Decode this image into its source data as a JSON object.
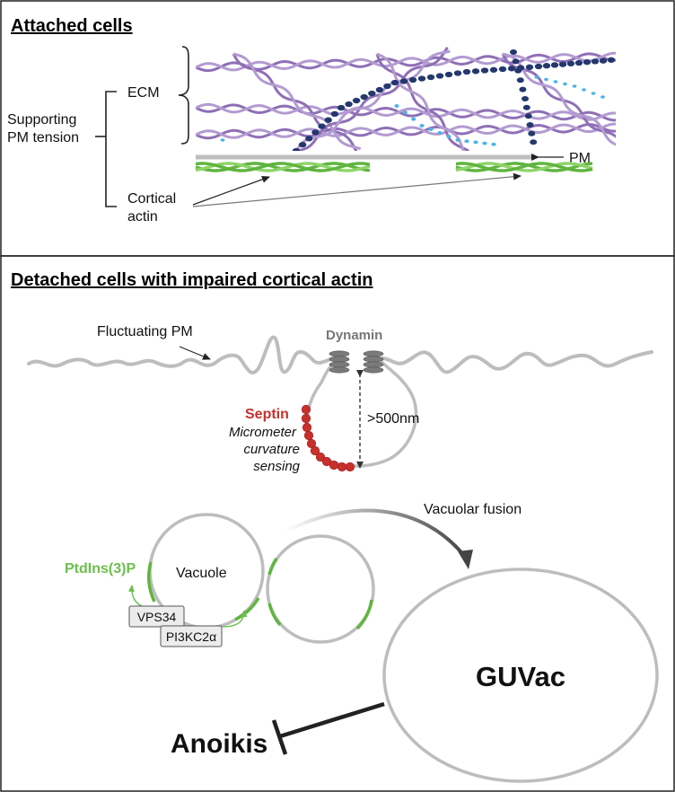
{
  "panels": {
    "attached": {
      "title": "Attached cells",
      "labels": {
        "ecm": "ECM",
        "supporting_line1": "Supporting",
        "supporting_line2": "PM tension",
        "pm": "PM",
        "cortical_line1": "Cortical",
        "cortical_line2": "actin"
      }
    },
    "detached": {
      "title": "Detached cells with impaired cortical actin",
      "labels": {
        "fluctuating_pm": "Fluctuating PM",
        "dynamin": "Dynamin",
        "septin": "Septin",
        "micrometer_line1": "Micrometer",
        "micrometer_line2": "curvature",
        "micrometer_line3": "sensing",
        "distance": ">500nm",
        "vacuolar_fusion": "Vacuolar fusion",
        "ptdins3p": "PtdIns(3)P",
        "vacuole": "Vacuole",
        "vps34": "VPS34",
        "pi3kc2a": "PI3KC2α",
        "guvac": "GUVac",
        "anoikis": "Anoikis"
      }
    }
  },
  "colors": {
    "ecm_purple": "#8f6fb6",
    "ecm_dark_blue": "#24386e",
    "ecm_light_blue": "#4bb3e6",
    "actin_green": "#5fb53f",
    "membrane_gray": "#bdbdbd",
    "septin_red": "#c8302c",
    "ptdins_green": "#6cbf4d",
    "dynamin_gray": "#7a7a7a",
    "text_gray": "#6f6f6f"
  }
}
